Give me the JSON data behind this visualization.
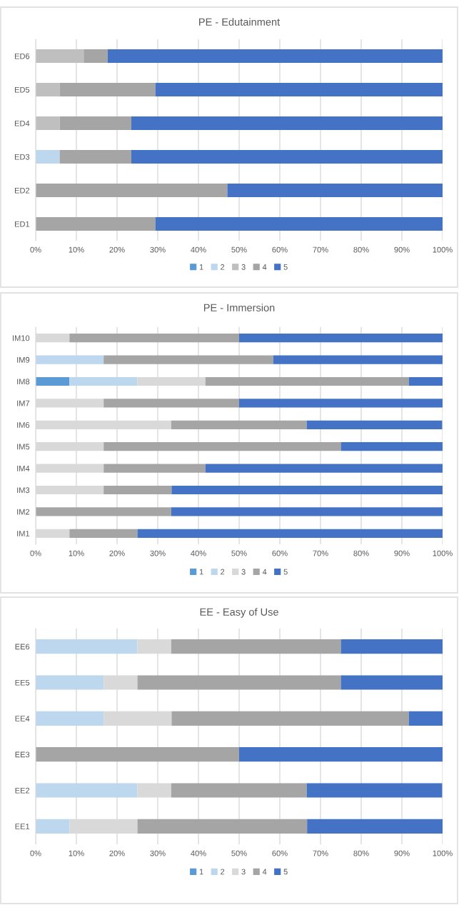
{
  "chart_data": [
    {
      "type": "bar",
      "orientation": "horizontal",
      "stacked": true,
      "title": "PE - Edutainment",
      "categories": [
        "ED6",
        "ED5",
        "ED4",
        "ED3",
        "ED2",
        "ED1"
      ],
      "series": [
        {
          "name": "1",
          "color": "#5b9bd5",
          "values": [
            0,
            0,
            0,
            0,
            0,
            0
          ]
        },
        {
          "name": "2",
          "color": "#bdd7ee",
          "values": [
            0,
            0,
            0,
            5.9,
            0,
            0
          ]
        },
        {
          "name": "3",
          "color": "#bfbfbf",
          "values": [
            11.8,
            5.9,
            5.9,
            0,
            0,
            0
          ]
        },
        {
          "name": "4",
          "color": "#a5a5a5",
          "values": [
            5.9,
            23.5,
            17.6,
            17.6,
            47.1,
            29.4
          ]
        },
        {
          "name": "5",
          "color": "#4472c4",
          "values": [
            82.3,
            70.6,
            76.5,
            76.5,
            52.9,
            70.6
          ]
        }
      ],
      "xlim": [
        0,
        100
      ],
      "xticks": [
        {
          "value": 0,
          "label": "0%"
        },
        {
          "value": 10,
          "label": "10%"
        },
        {
          "value": 20,
          "label": "20%"
        },
        {
          "value": 30,
          "label": "30%"
        },
        {
          "value": 40,
          "label": "40%"
        },
        {
          "value": 50,
          "label": "50%"
        },
        {
          "value": 60,
          "label": "60%"
        },
        {
          "value": 70,
          "label": "70%"
        },
        {
          "value": 80,
          "label": "80%"
        },
        {
          "value": 90,
          "label": "90%"
        },
        {
          "value": 100,
          "label": "100%"
        }
      ],
      "grid": "x",
      "legend": "bottom"
    },
    {
      "type": "bar",
      "orientation": "horizontal",
      "stacked": true,
      "title": "PE - Immersion",
      "categories": [
        "IM10",
        "IM9",
        "IM8",
        "IM7",
        "IM6",
        "IM5",
        "IM4",
        "IM3",
        "IM2",
        "IM1"
      ],
      "series": [
        {
          "name": "1",
          "color": "#5b9bd5",
          "values": [
            0,
            0,
            8.3,
            0,
            0,
            0,
            0,
            0,
            0,
            0
          ]
        },
        {
          "name": "2",
          "color": "#bdd7ee",
          "values": [
            0,
            16.7,
            16.7,
            0,
            0,
            0,
            0,
            0,
            0,
            0
          ]
        },
        {
          "name": "3",
          "color": "#d9d9d9",
          "values": [
            8.3,
            0,
            16.7,
            16.7,
            33.3,
            16.7,
            16.7,
            16.7,
            0,
            8.3
          ]
        },
        {
          "name": "4",
          "color": "#a5a5a5",
          "values": [
            41.7,
            41.7,
            50,
            33.3,
            33.3,
            58.3,
            25,
            16.7,
            33.3,
            16.7
          ]
        },
        {
          "name": "5",
          "color": "#4472c4",
          "values": [
            50,
            41.6,
            8.3,
            50,
            33.3,
            25,
            58.3,
            66.6,
            66.7,
            75
          ]
        }
      ],
      "xlim": [
        0,
        100
      ],
      "xticks": [
        {
          "value": 0,
          "label": "0%"
        },
        {
          "value": 10,
          "label": "10%"
        },
        {
          "value": 20,
          "label": "20%"
        },
        {
          "value": 30,
          "label": "30%"
        },
        {
          "value": 40,
          "label": "40%"
        },
        {
          "value": 50,
          "label": "50%"
        },
        {
          "value": 60,
          "label": "60%"
        },
        {
          "value": 70,
          "label": "70%"
        },
        {
          "value": 80,
          "label": "80%"
        },
        {
          "value": 90,
          "label": "90%"
        },
        {
          "value": 100,
          "label": "100%"
        }
      ],
      "grid": "x",
      "legend": "bottom"
    },
    {
      "type": "bar",
      "orientation": "horizontal",
      "stacked": true,
      "title": "EE - Easy of Use",
      "categories": [
        "EE6",
        "EE5",
        "EE4",
        "EE3",
        "EE2",
        "EE1"
      ],
      "series": [
        {
          "name": "1",
          "color": "#5b9bd5",
          "values": [
            0,
            0,
            0,
            0,
            0,
            0
          ]
        },
        {
          "name": "2",
          "color": "#bdd7ee",
          "values": [
            25,
            16.7,
            16.7,
            0,
            25,
            8.3
          ]
        },
        {
          "name": "3",
          "color": "#d9d9d9",
          "values": [
            8.3,
            8.3,
            16.7,
            0,
            8.3,
            16.7
          ]
        },
        {
          "name": "4",
          "color": "#a5a5a5",
          "values": [
            41.7,
            50,
            58.3,
            50,
            33.3,
            41.7
          ]
        },
        {
          "name": "5",
          "color": "#4472c4",
          "values": [
            25,
            25,
            8.3,
            50,
            33.3,
            33.3
          ]
        }
      ],
      "xlim": [
        0,
        100
      ],
      "xticks": [
        {
          "value": 0,
          "label": "0%"
        },
        {
          "value": 10,
          "label": "10%"
        },
        {
          "value": 20,
          "label": "20%"
        },
        {
          "value": 30,
          "label": "30%"
        },
        {
          "value": 40,
          "label": "40%"
        },
        {
          "value": 50,
          "label": "50%"
        },
        {
          "value": 60,
          "label": "60%"
        },
        {
          "value": 70,
          "label": "70%"
        },
        {
          "value": 80,
          "label": "80%"
        },
        {
          "value": 90,
          "label": "90%"
        },
        {
          "value": 100,
          "label": "100%"
        }
      ],
      "grid": "x",
      "legend": "bottom"
    }
  ]
}
